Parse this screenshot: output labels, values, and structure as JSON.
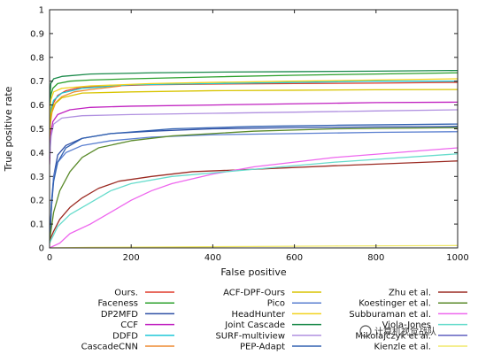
{
  "chart_data": {
    "type": "line",
    "title": "",
    "xlabel": "False positive",
    "ylabel": "True positive rate",
    "xlim": [
      0,
      1000
    ],
    "ylim": [
      0,
      1
    ],
    "x_ticks": [
      0,
      200,
      400,
      600,
      800,
      1000
    ],
    "y_ticks": [
      0,
      0.1,
      0.2,
      0.3,
      0.4,
      0.5,
      0.6,
      0.7,
      0.8,
      0.9,
      1
    ],
    "grid": false,
    "legend_position": "bottom",
    "series": [
      {
        "name": "Ours.",
        "color": "#e03a2a",
        "points": [
          [
            0,
            0.4
          ],
          [
            2,
            0.55
          ],
          [
            5,
            0.58
          ],
          [
            10,
            0.61
          ],
          [
            20,
            0.64
          ],
          [
            40,
            0.66
          ],
          [
            80,
            0.675
          ],
          [
            150,
            0.68
          ],
          [
            250,
            0.685
          ],
          [
            400,
            0.688
          ],
          [
            600,
            0.69
          ],
          [
            800,
            0.692
          ],
          [
            1000,
            0.695
          ]
        ]
      },
      {
        "name": "Faceness",
        "color": "#2ca02c",
        "points": [
          [
            0,
            0.55
          ],
          [
            3,
            0.64
          ],
          [
            8,
            0.67
          ],
          [
            20,
            0.69
          ],
          [
            50,
            0.7
          ],
          [
            100,
            0.705
          ],
          [
            200,
            0.71
          ],
          [
            400,
            0.718
          ],
          [
            600,
            0.725
          ],
          [
            800,
            0.73
          ],
          [
            1000,
            0.735
          ]
        ]
      },
      {
        "name": "DP2MFD",
        "color": "#2e4fa5",
        "points": [
          [
            0,
            0.02
          ],
          [
            5,
            0.18
          ],
          [
            10,
            0.3
          ],
          [
            20,
            0.39
          ],
          [
            40,
            0.43
          ],
          [
            80,
            0.46
          ],
          [
            150,
            0.48
          ],
          [
            250,
            0.49
          ],
          [
            400,
            0.5
          ],
          [
            600,
            0.505
          ],
          [
            800,
            0.508
          ],
          [
            1000,
            0.51
          ]
        ]
      },
      {
        "name": "CCF",
        "color": "#c020c0",
        "points": [
          [
            0,
            0.35
          ],
          [
            3,
            0.48
          ],
          [
            8,
            0.53
          ],
          [
            20,
            0.56
          ],
          [
            50,
            0.58
          ],
          [
            100,
            0.59
          ],
          [
            200,
            0.595
          ],
          [
            400,
            0.6
          ],
          [
            600,
            0.605
          ],
          [
            800,
            0.61
          ],
          [
            1000,
            0.612
          ]
        ]
      },
      {
        "name": "DDFD",
        "color": "#20c8d8",
        "points": [
          [
            0,
            0.5
          ],
          [
            3,
            0.58
          ],
          [
            10,
            0.62
          ],
          [
            30,
            0.65
          ],
          [
            80,
            0.67
          ],
          [
            200,
            0.685
          ],
          [
            400,
            0.69
          ],
          [
            600,
            0.695
          ],
          [
            800,
            0.7
          ],
          [
            1000,
            0.7
          ]
        ]
      },
      {
        "name": "CascadeCNN",
        "color": "#ee8a30",
        "points": [
          [
            0,
            0.45
          ],
          [
            2,
            0.52
          ],
          [
            6,
            0.57
          ],
          [
            15,
            0.61
          ],
          [
            30,
            0.635
          ],
          [
            60,
            0.655
          ],
          [
            100,
            0.665
          ],
          [
            150,
            0.675
          ],
          [
            175,
            0.68
          ]
        ]
      },
      {
        "name": "ACF-DPF-Ours",
        "color": "#d8c400",
        "points": [
          [
            0,
            0.48
          ],
          [
            3,
            0.56
          ],
          [
            10,
            0.6
          ],
          [
            30,
            0.63
          ],
          [
            80,
            0.65
          ],
          [
            200,
            0.655
          ],
          [
            400,
            0.66
          ],
          [
            600,
            0.662
          ],
          [
            800,
            0.664
          ],
          [
            1000,
            0.665
          ]
        ]
      },
      {
        "name": "Pico",
        "color": "#5a7fd0",
        "points": [
          [
            0,
            0.02
          ],
          [
            5,
            0.2
          ],
          [
            10,
            0.3
          ],
          [
            20,
            0.36
          ],
          [
            40,
            0.4
          ],
          [
            80,
            0.43
          ],
          [
            150,
            0.45
          ],
          [
            250,
            0.465
          ],
          [
            400,
            0.475
          ],
          [
            600,
            0.48
          ],
          [
            800,
            0.485
          ],
          [
            1000,
            0.488
          ]
        ]
      },
      {
        "name": "HeadHunter",
        "color": "#f2d21e",
        "points": [
          [
            0,
            0.55
          ],
          [
            3,
            0.62
          ],
          [
            10,
            0.655
          ],
          [
            30,
            0.67
          ],
          [
            100,
            0.68
          ],
          [
            250,
            0.69
          ],
          [
            400,
            0.695
          ],
          [
            600,
            0.7
          ],
          [
            800,
            0.705
          ],
          [
            1000,
            0.71
          ]
        ]
      },
      {
        "name": "Joint Cascade",
        "color": "#1a8a4a",
        "points": [
          [
            0,
            0.6
          ],
          [
            3,
            0.69
          ],
          [
            10,
            0.71
          ],
          [
            30,
            0.72
          ],
          [
            100,
            0.73
          ],
          [
            250,
            0.735
          ],
          [
            400,
            0.738
          ],
          [
            600,
            0.74
          ],
          [
            800,
            0.742
          ],
          [
            1000,
            0.745
          ]
        ]
      },
      {
        "name": "SURF-multiview",
        "color": "#b090e0",
        "points": [
          [
            0,
            0.38
          ],
          [
            4,
            0.47
          ],
          [
            10,
            0.52
          ],
          [
            30,
            0.545
          ],
          [
            80,
            0.555
          ],
          [
            200,
            0.56
          ],
          [
            400,
            0.565
          ],
          [
            600,
            0.57
          ],
          [
            800,
            0.575
          ],
          [
            1000,
            0.58
          ]
        ]
      },
      {
        "name": "PEP-Adapt",
        "color": "#3060b0",
        "points": [
          [
            0,
            0.03
          ],
          [
            5,
            0.18
          ],
          [
            10,
            0.28
          ],
          [
            20,
            0.36
          ],
          [
            40,
            0.42
          ],
          [
            80,
            0.46
          ],
          [
            150,
            0.48
          ],
          [
            300,
            0.5
          ],
          [
            500,
            0.51
          ],
          [
            700,
            0.515
          ],
          [
            1000,
            0.52
          ]
        ]
      },
      {
        "name": "Zhu et al.",
        "color": "#9b2a22",
        "points": [
          [
            0,
            0.03
          ],
          [
            10,
            0.07
          ],
          [
            25,
            0.12
          ],
          [
            50,
            0.17
          ],
          [
            80,
            0.21
          ],
          [
            120,
            0.25
          ],
          [
            170,
            0.28
          ],
          [
            250,
            0.3
          ],
          [
            350,
            0.32
          ],
          [
            500,
            0.33
          ],
          [
            700,
            0.345
          ],
          [
            1000,
            0.365
          ]
        ]
      },
      {
        "name": "Koestinger et al.",
        "color": "#5a8a2a",
        "points": [
          [
            0,
            0.03
          ],
          [
            10,
            0.15
          ],
          [
            25,
            0.24
          ],
          [
            50,
            0.32
          ],
          [
            80,
            0.38
          ],
          [
            120,
            0.42
          ],
          [
            200,
            0.45
          ],
          [
            300,
            0.47
          ],
          [
            500,
            0.49
          ],
          [
            700,
            0.5
          ],
          [
            1000,
            0.505
          ]
        ]
      },
      {
        "name": "Subburaman et al.",
        "color": "#ee66ee",
        "points": [
          [
            0,
            0.0
          ],
          [
            25,
            0.02
          ],
          [
            50,
            0.06
          ],
          [
            100,
            0.1
          ],
          [
            150,
            0.15
          ],
          [
            200,
            0.2
          ],
          [
            250,
            0.24
          ],
          [
            300,
            0.27
          ],
          [
            400,
            0.31
          ],
          [
            500,
            0.34
          ],
          [
            700,
            0.38
          ],
          [
            1000,
            0.42
          ]
        ]
      },
      {
        "name": "Viola-Jones",
        "color": "#66dccc",
        "points": [
          [
            0,
            0.02
          ],
          [
            20,
            0.09
          ],
          [
            50,
            0.14
          ],
          [
            100,
            0.19
          ],
          [
            150,
            0.24
          ],
          [
            200,
            0.27
          ],
          [
            300,
            0.3
          ],
          [
            500,
            0.33
          ],
          [
            700,
            0.36
          ],
          [
            1000,
            0.395
          ]
        ]
      },
      {
        "name": "Kienzle et al.",
        "color": "#f0e86a",
        "points": [
          [
            0,
            0.0
          ],
          [
            100,
            0.002
          ],
          [
            300,
            0.004
          ],
          [
            500,
            0.006
          ],
          [
            700,
            0.008
          ],
          [
            1000,
            0.01
          ]
        ]
      }
    ],
    "legend_label_extra": "Mikolajczyk et al."
  },
  "watermark": {
    "text": "计算机视觉战队"
  }
}
